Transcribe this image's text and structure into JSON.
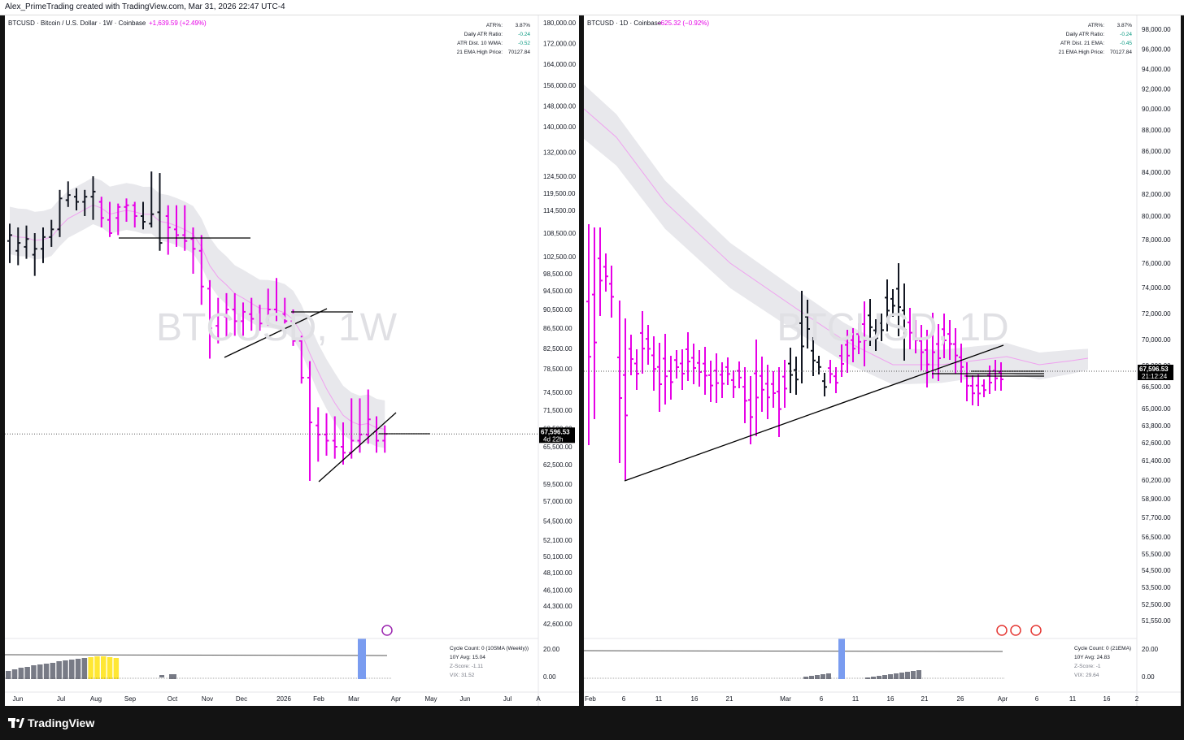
{
  "header": {
    "credit": "Alex_PrimeTrading created with TradingView.com, Mar 31, 2026 22:47 UTC-4"
  },
  "footer": {
    "brand": "TradingView"
  },
  "colors": {
    "bull_bar": "#131722",
    "bear_bar": "#e600e6",
    "ema": "#f0a0f0",
    "band": "#e8e8ec",
    "volume_bar": "#787b86",
    "highlight_bar": "#ffe733",
    "marker": "#7a9cf0",
    "trend_line": "#000000"
  },
  "chart_data": [
    {
      "type": "ohlc",
      "symbol_line": "BTCUSD · Bitcoin / U.S. Dollar · 1W · Coinbase",
      "change_text": "+1,639.59 (+2.49%)",
      "watermark": "BTCUSD, 1W",
      "stats": [
        {
          "label": "ATR%:",
          "value": "3.87%"
        },
        {
          "label": "Daily ATR Ratio:",
          "value": "-0.24"
        },
        {
          "label": "ATR Dist. 10 WMA:",
          "value": "-0.52"
        },
        {
          "label": "21 EMA High Price:",
          "value": "70127.84"
        }
      ],
      "price_ticks": [
        "180,000.00",
        "172,000.00",
        "164,000.00",
        "156,000.00",
        "148,000.00",
        "140,000.00",
        "132,000.00",
        "124,500.00",
        "119,500.00",
        "114,500.00",
        "108,500.00",
        "102,500.00",
        "98,500.00",
        "94,500.00",
        "90,500.00",
        "86,500.00",
        "82,500.00",
        "78,500.00",
        "74,500.00",
        "71,500.00",
        "68,500.00",
        "65,500.00",
        "62,500.00",
        "59,500.00",
        "57,000.00",
        "54,500.00",
        "52,100.00",
        "50,100.00",
        "48,100.00",
        "46,100.00",
        "44,300.00",
        "42,600.00"
      ],
      "last_price": "67,596.53",
      "countdown": "4d 22h",
      "time_ticks": [
        "Jun",
        "Jul",
        "Aug",
        "Sep",
        "Oct",
        "Nov",
        "Dec",
        "2026",
        "Feb",
        "Mar",
        "Apr",
        "May",
        "Jun",
        "Jul",
        "A"
      ],
      "indicator": {
        "lines": [
          "Cycle Count: 0 (10SMA (Weekly))",
          "10Y Avg: 15.04",
          "Z-Score: -1.11",
          "VIX: 31.52"
        ],
        "ticks": [
          "20.00",
          "0.00"
        ]
      },
      "bars": [
        {
          "o": 106500,
          "h": 111000,
          "l": 101000,
          "c": 108000,
          "dir": "up"
        },
        {
          "o": 104000,
          "h": 110000,
          "l": 100500,
          "c": 106000,
          "dir": "up"
        },
        {
          "o": 105000,
          "h": 110500,
          "l": 102000,
          "c": 107000,
          "dir": "up"
        },
        {
          "o": 103000,
          "h": 108500,
          "l": 98000,
          "c": 104500,
          "dir": "up"
        },
        {
          "o": 104500,
          "h": 110000,
          "l": 101000,
          "c": 107500,
          "dir": "up"
        },
        {
          "o": 107500,
          "h": 112000,
          "l": 105000,
          "c": 109500,
          "dir": "up"
        },
        {
          "o": 109500,
          "h": 120500,
          "l": 107500,
          "c": 118000,
          "dir": "up"
        },
        {
          "o": 117500,
          "h": 123000,
          "l": 115500,
          "c": 119000,
          "dir": "up"
        },
        {
          "o": 118500,
          "h": 121000,
          "l": 114500,
          "c": 117000,
          "dir": "up"
        },
        {
          "o": 117000,
          "h": 120500,
          "l": 113000,
          "c": 118500,
          "dir": "up"
        },
        {
          "o": 118500,
          "h": 124500,
          "l": 112000,
          "c": 120000,
          "dir": "up"
        },
        {
          "o": 117000,
          "h": 118500,
          "l": 110000,
          "c": 112500,
          "dir": "down"
        },
        {
          "o": 112000,
          "h": 117000,
          "l": 107500,
          "c": 108500,
          "dir": "down"
        },
        {
          "o": 112500,
          "h": 116500,
          "l": 108000,
          "c": 115500,
          "dir": "down"
        },
        {
          "o": 115500,
          "h": 118000,
          "l": 111500,
          "c": 116000,
          "dir": "down"
        },
        {
          "o": 116000,
          "h": 117000,
          "l": 110000,
          "c": 113000,
          "dir": "down"
        },
        {
          "o": 113000,
          "h": 117000,
          "l": 109500,
          "c": 111500,
          "dir": "up"
        },
        {
          "o": 111000,
          "h": 126000,
          "l": 110000,
          "c": 113500,
          "dir": "up"
        },
        {
          "o": 114000,
          "h": 125500,
          "l": 104000,
          "c": 106000,
          "dir": "up"
        },
        {
          "o": 113000,
          "h": 116000,
          "l": 103000,
          "c": 110000,
          "dir": "down"
        },
        {
          "o": 109500,
          "h": 116000,
          "l": 105000,
          "c": 108000,
          "dir": "down"
        },
        {
          "o": 108000,
          "h": 116000,
          "l": 104000,
          "c": 106500,
          "dir": "down"
        },
        {
          "o": 107000,
          "h": 110000,
          "l": 98500,
          "c": 104500,
          "dir": "down"
        },
        {
          "o": 104000,
          "h": 108000,
          "l": 91500,
          "c": 95500,
          "dir": "down"
        },
        {
          "o": 95000,
          "h": 97000,
          "l": 80500,
          "c": 86500,
          "dir": "down"
        },
        {
          "o": 87000,
          "h": 93000,
          "l": 83500,
          "c": 89500,
          "dir": "down"
        },
        {
          "o": 89000,
          "h": 94000,
          "l": 84500,
          "c": 90500,
          "dir": "down"
        },
        {
          "o": 90500,
          "h": 94000,
          "l": 85000,
          "c": 88000,
          "dir": "down"
        },
        {
          "o": 88000,
          "h": 92000,
          "l": 85000,
          "c": 90000,
          "dir": "down"
        },
        {
          "o": 89500,
          "h": 93000,
          "l": 86000,
          "c": 88500,
          "dir": "down"
        },
        {
          "o": 88500,
          "h": 91500,
          "l": 86000,
          "c": 87500,
          "dir": "down"
        },
        {
          "o": 88000,
          "h": 95000,
          "l": 87000,
          "c": 90500,
          "dir": "down"
        },
        {
          "o": 90500,
          "h": 97500,
          "l": 88000,
          "c": 89500,
          "dir": "down"
        },
        {
          "o": 89500,
          "h": 93000,
          "l": 87500,
          "c": 88000,
          "dir": "down"
        },
        {
          "o": 88000,
          "h": 90500,
          "l": 83000,
          "c": 84000,
          "dir": "down"
        },
        {
          "o": 84000,
          "h": 85000,
          "l": 76000,
          "c": 77000,
          "dir": "down"
        },
        {
          "o": 77000,
          "h": 80000,
          "l": 60000,
          "c": 69500,
          "dir": "down"
        },
        {
          "o": 69000,
          "h": 72000,
          "l": 63000,
          "c": 67500,
          "dir": "down"
        },
        {
          "o": 67500,
          "h": 71000,
          "l": 64000,
          "c": 66500,
          "dir": "down"
        },
        {
          "o": 66500,
          "h": 70500,
          "l": 63500,
          "c": 65500,
          "dir": "down"
        },
        {
          "o": 65500,
          "h": 69500,
          "l": 62500,
          "c": 64500,
          "dir": "down"
        },
        {
          "o": 64500,
          "h": 73500,
          "l": 63500,
          "c": 66500,
          "dir": "down"
        },
        {
          "o": 66500,
          "h": 73500,
          "l": 64500,
          "c": 67500,
          "dir": "down"
        },
        {
          "o": 67500,
          "h": 75000,
          "l": 66000,
          "c": 70000,
          "dir": "down"
        },
        {
          "o": 68000,
          "h": 70500,
          "l": 64500,
          "c": 66500,
          "dir": "down"
        },
        {
          "o": 66500,
          "h": 69000,
          "l": 64500,
          "c": 67600,
          "dir": "down"
        }
      ]
    },
    {
      "type": "ohlc",
      "symbol_line": "BTCUSD · 1D · Coinbase",
      "change_text": "−625.32 (−0.92%)",
      "watermark": "BTCUSD, 1D",
      "stats": [
        {
          "label": "ATR%:",
          "value": "3.87%"
        },
        {
          "label": "Daily ATR Ratio:",
          "value": "-0.24"
        },
        {
          "label": "ATR Dist. 21 EMA:",
          "value": "-0.45"
        },
        {
          "label": "21 EMA High Price:",
          "value": "70127.84"
        }
      ],
      "price_ticks": [
        "98,000.00",
        "96,000.00",
        "94,000.00",
        "92,000.00",
        "90,000.00",
        "88,000.00",
        "86,000.00",
        "84,000.00",
        "82,000.00",
        "80,000.00",
        "78,000.00",
        "76,000.00",
        "74,000.00",
        "72,000.00",
        "70,000.00",
        "68,000.00",
        "66,500.00",
        "65,000.00",
        "63,800.00",
        "62,600.00",
        "61,400.00",
        "60,200.00",
        "58,900.00",
        "57,700.00",
        "56,500.00",
        "55,500.00",
        "54,500.00",
        "53,500.00",
        "52,500.00",
        "51,550.00"
      ],
      "last_price": "67,596.53",
      "countdown": "21:12:24",
      "time_ticks": [
        "Feb",
        "6",
        "11",
        "16",
        "21",
        "Mar",
        "6",
        "11",
        "16",
        "21",
        "26",
        "Apr",
        "6",
        "11",
        "16",
        "2"
      ],
      "indicator": {
        "lines": [
          "Cycle Count: 0 (21EMA)",
          "10Y Avg: 24.83",
          "Z-Score: -1",
          "VIX: 29.64"
        ],
        "ticks": [
          "20.00",
          "0.00"
        ]
      }
    }
  ]
}
